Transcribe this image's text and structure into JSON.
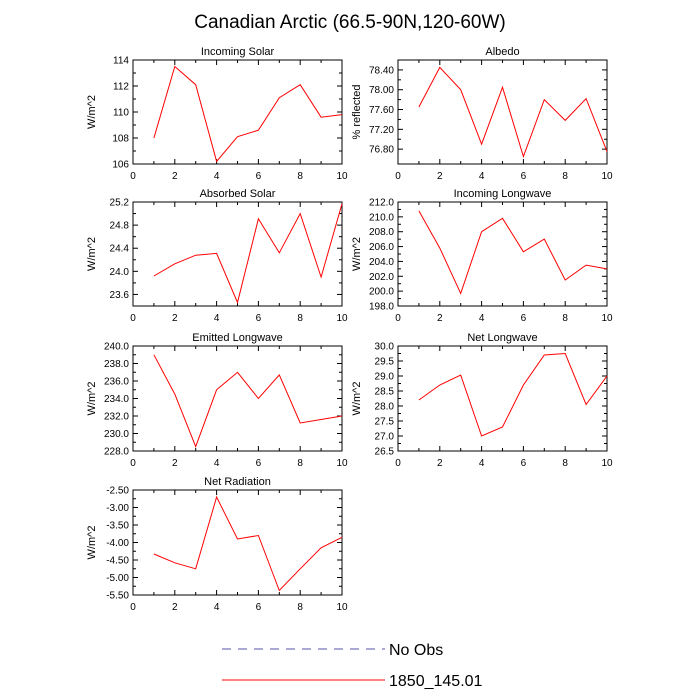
{
  "figure": {
    "title": "Canadian Arctic (66.5-90N,120-60W)"
  },
  "legend": {
    "entries": [
      {
        "label": "No Obs",
        "color": "#5555aa",
        "style": "dashed"
      },
      {
        "label": "1850_145.01",
        "color": "#ff0000",
        "style": "solid"
      }
    ]
  },
  "chart_data": [
    {
      "type": "line",
      "title": "Incoming Solar",
      "ylabel": "W/m^2",
      "xlim": [
        0,
        10
      ],
      "xticks": [
        0,
        2,
        4,
        6,
        8,
        10
      ],
      "ylim": [
        106,
        114
      ],
      "yticks": [
        "106",
        "108",
        "110",
        "112",
        "114"
      ],
      "series": [
        {
          "name": "1850_145.01",
          "color": "#ff0000",
          "x": [
            1,
            2,
            3,
            4,
            5,
            6,
            7,
            8,
            9,
            10
          ],
          "y": [
            108.0,
            113.5,
            112.1,
            106.2,
            108.1,
            108.6,
            111.1,
            112.1,
            109.6,
            109.8
          ]
        }
      ]
    },
    {
      "type": "line",
      "title": "Albedo",
      "ylabel": "% reflected",
      "xlim": [
        0,
        10
      ],
      "xticks": [
        0,
        2,
        4,
        6,
        8,
        10
      ],
      "ylim": [
        76.5,
        78.6
      ],
      "yticks": [
        "76.80",
        "77.20",
        "77.60",
        "78.00",
        "78.40"
      ],
      "series": [
        {
          "name": "1850_145.01",
          "color": "#ff0000",
          "x": [
            1,
            2,
            3,
            4,
            5,
            6,
            7,
            8,
            9,
            10
          ],
          "y": [
            77.65,
            78.45,
            78.0,
            76.9,
            78.05,
            76.65,
            77.8,
            77.38,
            77.82,
            76.75
          ]
        }
      ]
    },
    {
      "type": "line",
      "title": "Absorbed Solar",
      "ylabel": "W/m^2",
      "xlim": [
        0,
        10
      ],
      "xticks": [
        0,
        2,
        4,
        6,
        8,
        10
      ],
      "ylim": [
        23.4,
        25.2
      ],
      "yticks": [
        "23.6",
        "24.0",
        "24.4",
        "24.8",
        "25.2"
      ],
      "series": [
        {
          "name": "1850_145.01",
          "color": "#ff0000",
          "x": [
            1,
            2,
            3,
            4,
            5,
            6,
            7,
            8,
            9,
            10
          ],
          "y": [
            23.92,
            24.13,
            24.28,
            24.31,
            23.46,
            24.91,
            24.32,
            25.0,
            23.9,
            25.17
          ]
        }
      ]
    },
    {
      "type": "line",
      "title": "Incoming Longwave",
      "ylabel": "W/m^2",
      "xlim": [
        0,
        10
      ],
      "xticks": [
        0,
        2,
        4,
        6,
        8,
        10
      ],
      "ylim": [
        198.0,
        212.0
      ],
      "yticks": [
        "198.0",
        "200.0",
        "202.0",
        "204.0",
        "206.0",
        "208.0",
        "210.0",
        "212.0"
      ],
      "series": [
        {
          "name": "1850_145.01",
          "color": "#ff0000",
          "x": [
            1,
            2,
            3,
            4,
            5,
            6,
            7,
            8,
            9,
            10
          ],
          "y": [
            210.8,
            205.8,
            199.7,
            208.0,
            209.8,
            205.3,
            207.0,
            201.5,
            203.5,
            203.0
          ]
        }
      ]
    },
    {
      "type": "line",
      "title": "Emitted Longwave",
      "ylabel": "W/m^2",
      "xlim": [
        0,
        10
      ],
      "xticks": [
        0,
        2,
        4,
        6,
        8,
        10
      ],
      "ylim": [
        228.0,
        240.0
      ],
      "yticks": [
        "228.0",
        "230.0",
        "232.0",
        "234.0",
        "236.0",
        "238.0",
        "240.0"
      ],
      "series": [
        {
          "name": "1850_145.01",
          "color": "#ff0000",
          "x": [
            1,
            2,
            3,
            4,
            5,
            6,
            7,
            8,
            9,
            10
          ],
          "y": [
            239.0,
            234.5,
            228.5,
            235.0,
            237.0,
            234.0,
            236.7,
            231.2,
            231.6,
            232.0
          ]
        }
      ]
    },
    {
      "type": "line",
      "title": "Net Longwave",
      "ylabel": "W/m^2",
      "xlim": [
        0,
        10
      ],
      "xticks": [
        0,
        2,
        4,
        6,
        8,
        10
      ],
      "ylim": [
        26.5,
        30.0
      ],
      "yticks": [
        "26.5",
        "27.0",
        "27.5",
        "28.0",
        "28.5",
        "29.0",
        "29.5",
        "30.0"
      ],
      "series": [
        {
          "name": "1850_145.01",
          "color": "#ff0000",
          "x": [
            1,
            2,
            3,
            4,
            5,
            6,
            7,
            8,
            9,
            10
          ],
          "y": [
            28.2,
            28.7,
            29.03,
            27.0,
            27.3,
            28.7,
            29.7,
            29.75,
            28.05,
            29.0
          ]
        }
      ]
    },
    {
      "type": "line",
      "title": "Net Radiation",
      "ylabel": "W/m^2",
      "xlim": [
        0,
        10
      ],
      "xticks": [
        0,
        2,
        4,
        6,
        8,
        10
      ],
      "ylim": [
        -5.5,
        -2.5
      ],
      "yticks": [
        "-5.50",
        "-5.00",
        "-4.50",
        "-4.00",
        "-3.50",
        "-3.00",
        "-2.50"
      ],
      "series": [
        {
          "name": "1850_145.01",
          "color": "#ff0000",
          "x": [
            1,
            2,
            3,
            4,
            5,
            6,
            7,
            8,
            9,
            10
          ],
          "y": [
            -4.33,
            -4.58,
            -4.75,
            -2.7,
            -3.9,
            -3.8,
            -5.37,
            -4.75,
            -4.15,
            -3.85
          ]
        }
      ]
    }
  ]
}
